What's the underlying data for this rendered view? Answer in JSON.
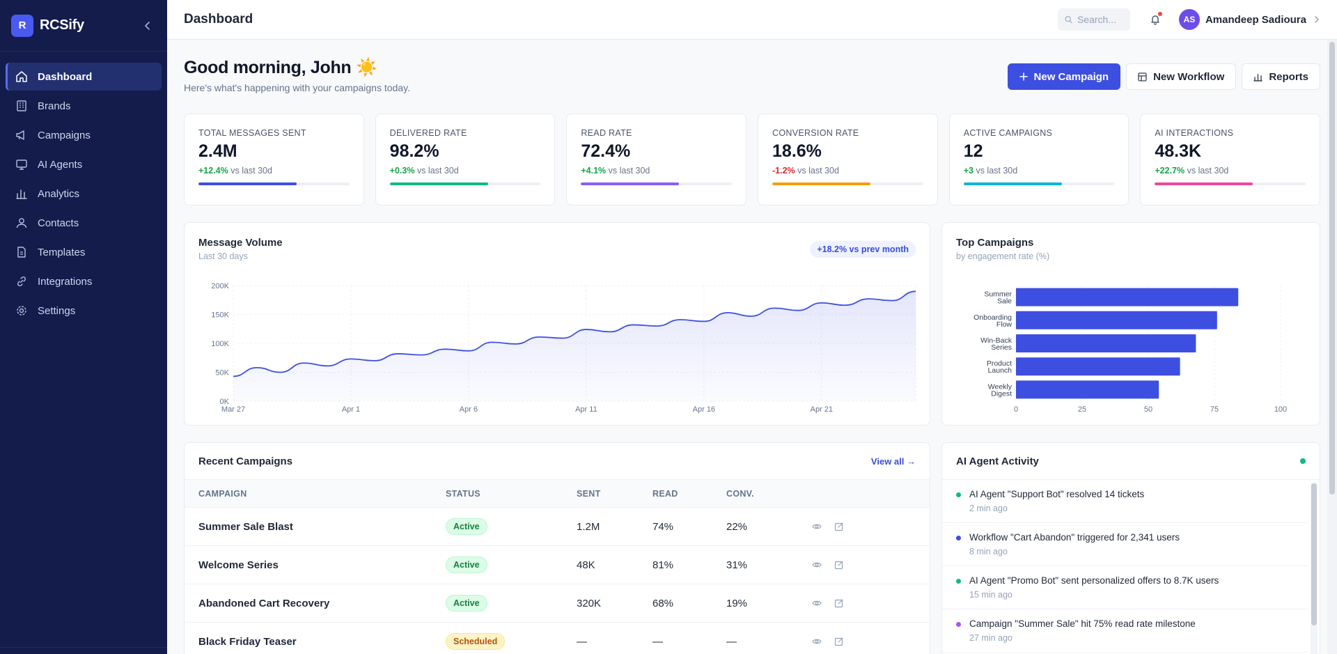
{
  "app": {
    "brand": "RCSify",
    "brand_initial": "R"
  },
  "nav": [
    {
      "label": "Dashboard",
      "icon": "home-icon",
      "active": true
    },
    {
      "label": "Brands",
      "icon": "building-icon"
    },
    {
      "label": "Campaigns",
      "icon": "megaphone-icon"
    },
    {
      "label": "AI Agents",
      "icon": "monitor-icon"
    },
    {
      "label": "Analytics",
      "icon": "bar-chart-icon"
    },
    {
      "label": "Contacts",
      "icon": "user-icon"
    },
    {
      "label": "Templates",
      "icon": "document-icon"
    },
    {
      "label": "Integrations",
      "icon": "link-icon"
    },
    {
      "label": "Settings",
      "icon": "gear-icon"
    }
  ],
  "topbar": {
    "title": "Dashboard",
    "search_placeholder": "Search...",
    "user_initials": "AS",
    "user_name": "Amandeep Sadioura"
  },
  "header": {
    "greeting": "Good morning, John ☀️",
    "subtitle": "Here's what's happening with your campaigns today.",
    "buttons": {
      "new_campaign": "New Campaign",
      "new_workflow": "New Workflow",
      "reports": "Reports"
    }
  },
  "stats": [
    {
      "label": "TOTAL MESSAGES SENT",
      "value": "2.4M",
      "delta": "+12.4%",
      "period": "vs last 30d",
      "trend": "up",
      "progress": 0.65,
      "color": "#3d4fe0"
    },
    {
      "label": "DELIVERED RATE",
      "value": "98.2%",
      "delta": "+0.3%",
      "period": "vs last 30d",
      "trend": "up",
      "progress": 0.65,
      "color": "#10b981"
    },
    {
      "label": "READ RATE",
      "value": "72.4%",
      "delta": "+4.1%",
      "period": "vs last 30d",
      "trend": "up",
      "progress": 0.65,
      "color": "#8b5cf6"
    },
    {
      "label": "CONVERSION RATE",
      "value": "18.6%",
      "delta": "-1.2%",
      "period": "vs last 30d",
      "trend": "down",
      "progress": 0.65,
      "color": "#f59e0b"
    },
    {
      "label": "ACTIVE CAMPAIGNS",
      "value": "12",
      "delta": "+3",
      "period": "vs last 30d",
      "trend": "up",
      "progress": 0.65,
      "color": "#06b6d4"
    },
    {
      "label": "AI INTERACTIONS",
      "value": "48.3K",
      "delta": "+22.7%",
      "period": "vs last 30d",
      "trend": "up",
      "progress": 0.65,
      "color": "#ec4899"
    }
  ],
  "volume": {
    "title": "Message Volume",
    "subtitle": "Last 30 days",
    "badge": "+18.2% vs prev month"
  },
  "top_campaigns": {
    "title": "Top Campaigns",
    "subtitle": "by engagement rate (%)"
  },
  "chart_data": [
    {
      "type": "area",
      "title": "Message Volume",
      "xlabel": "",
      "ylabel": "",
      "x_ticks": [
        "Mar 27",
        "Apr 1",
        "Apr 6",
        "Apr 11",
        "Apr 16",
        "Apr 21"
      ],
      "y_ticks": [
        "0K",
        "50K",
        "100K",
        "150K",
        "200K"
      ],
      "ylim": [
        0,
        200000
      ],
      "x": [
        "Mar 27",
        "Mar 28",
        "Mar 29",
        "Mar 30",
        "Mar 31",
        "Apr 1",
        "Apr 2",
        "Apr 3",
        "Apr 4",
        "Apr 5",
        "Apr 6",
        "Apr 7",
        "Apr 8",
        "Apr 9",
        "Apr 10",
        "Apr 11",
        "Apr 12",
        "Apr 13",
        "Apr 14",
        "Apr 15",
        "Apr 16",
        "Apr 17",
        "Apr 18",
        "Apr 19",
        "Apr 20",
        "Apr 21",
        "Apr 22",
        "Apr 23",
        "Apr 24",
        "Apr 25"
      ],
      "values": [
        43000,
        58000,
        50000,
        66000,
        61000,
        73000,
        70000,
        82000,
        80000,
        90000,
        87000,
        102000,
        99000,
        111000,
        109000,
        124000,
        120000,
        132000,
        130000,
        141000,
        138000,
        153000,
        147000,
        161000,
        157000,
        170000,
        166000,
        177000,
        174000,
        190000
      ],
      "color": "#3d4fe0",
      "grid": true
    },
    {
      "type": "bar",
      "orientation": "horizontal",
      "title": "Top Campaigns",
      "categories": [
        "Summer Sale",
        "Onboarding Flow",
        "Win-Back Series",
        "Product Launch",
        "Weekly Digest"
      ],
      "values": [
        84,
        76,
        68,
        62,
        54
      ],
      "xlim": [
        0,
        100
      ],
      "x_ticks": [
        "0",
        "25",
        "50",
        "75",
        "100"
      ],
      "color": "#3d4fe0",
      "grid": true
    }
  ],
  "recent": {
    "title": "Recent Campaigns",
    "view_all": "View all →",
    "columns": [
      "CAMPAIGN",
      "STATUS",
      "SENT",
      "READ",
      "CONV."
    ],
    "rows": [
      {
        "name": "Summer Sale Blast",
        "status": "Active",
        "sent": "1.2M",
        "read": "74%",
        "conv": "22%"
      },
      {
        "name": "Welcome Series",
        "status": "Active",
        "sent": "48K",
        "read": "81%",
        "conv": "31%"
      },
      {
        "name": "Abandoned Cart Recovery",
        "status": "Active",
        "sent": "320K",
        "read": "68%",
        "conv": "19%"
      },
      {
        "name": "Black Friday Teaser",
        "status": "Scheduled",
        "sent": "—",
        "read": "—",
        "conv": "—"
      }
    ]
  },
  "activity": {
    "title": "AI Agent Activity",
    "items": [
      {
        "text": "AI Agent \"Support Bot\" resolved 14 tickets",
        "time": "2 min ago",
        "color": "#10b981"
      },
      {
        "text": "Workflow \"Cart Abandon\" triggered for 2,341 users",
        "time": "8 min ago",
        "color": "#3d4fe0"
      },
      {
        "text": "AI Agent \"Promo Bot\" sent personalized offers to 8.7K users",
        "time": "15 min ago",
        "color": "#10b981"
      },
      {
        "text": "Campaign \"Summer Sale\" hit 75% read rate milestone",
        "time": "27 min ago",
        "color": "#a855f7"
      }
    ]
  }
}
